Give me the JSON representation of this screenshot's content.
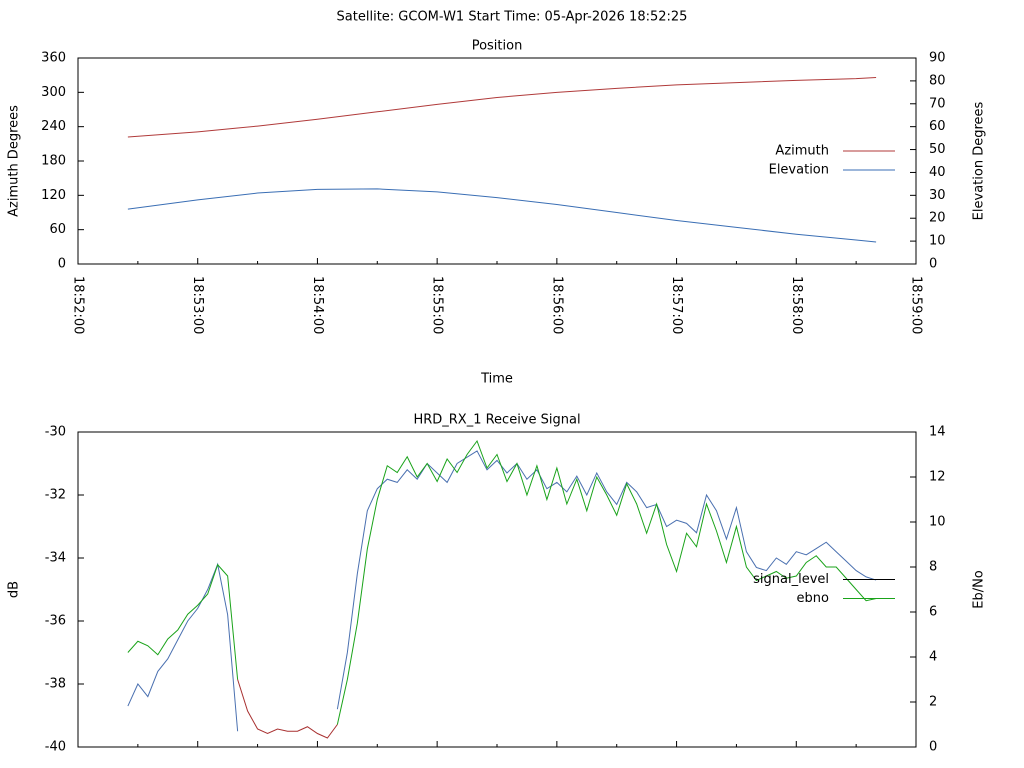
{
  "title": "Satellite: GCOM-W1    Start Time: 05-Apr-2026 18:52:25",
  "chart_data": [
    {
      "type": "line",
      "title": "Position",
      "xlabel": "Time",
      "ylabel": "Azimuth Degrees",
      "y2label": "Elevation Degrees",
      "x": [
        "18:52:25",
        "18:53:00",
        "18:53:30",
        "18:54:00",
        "18:54:30",
        "18:55:00",
        "18:55:30",
        "18:56:00",
        "18:56:30",
        "18:57:00",
        "18:57:30",
        "18:58:00",
        "18:58:30",
        "18:58:40"
      ],
      "series": [
        {
          "name": "Azimuth",
          "color": "#b03a3a",
          "axis": "y",
          "values": [
            222,
            231,
            241,
            253,
            266,
            279,
            291,
            300,
            307,
            313,
            317,
            321,
            324,
            326
          ]
        },
        {
          "name": "Elevation",
          "color": "#3a6eb4",
          "axis": "y2",
          "values": [
            24,
            28,
            31,
            32.6,
            32.8,
            31.5,
            29,
            26,
            22.5,
            19,
            16,
            13,
            10.5,
            9.6
          ]
        }
      ],
      "xlim": [
        "18:52:00",
        "18:59:00"
      ],
      "xticks": [
        "18:52:00",
        "18:53:00",
        "18:54:00",
        "18:55:00",
        "18:56:00",
        "18:57:00",
        "18:58:00",
        "18:59:00"
      ],
      "xtick_labels": true,
      "ylim": [
        0,
        360
      ],
      "yticks": [
        0,
        60,
        120,
        180,
        240,
        300,
        360
      ],
      "y2lim": [
        0,
        90
      ],
      "y2ticks": [
        0,
        10,
        20,
        30,
        40,
        50,
        60,
        70,
        80,
        90
      ],
      "legend": "right"
    },
    {
      "type": "line",
      "title": "HRD_RX_1 Receive Signal",
      "ylabel": "dB",
      "y2label": "Eb/No",
      "x": [
        "18:52:25",
        "18:52:30",
        "18:52:35",
        "18:52:40",
        "18:52:45",
        "18:52:50",
        "18:52:55",
        "18:53:00",
        "18:53:05",
        "18:53:10",
        "18:53:15",
        "18:53:20",
        "18:53:25",
        "18:53:30",
        "18:53:35",
        "18:53:40",
        "18:53:45",
        "18:53:50",
        "18:53:55",
        "18:54:00",
        "18:54:05",
        "18:54:10",
        "18:54:15",
        "18:54:20",
        "18:54:25",
        "18:54:30",
        "18:54:35",
        "18:54:40",
        "18:54:45",
        "18:54:50",
        "18:54:55",
        "18:55:00",
        "18:55:05",
        "18:55:10",
        "18:55:15",
        "18:55:20",
        "18:55:25",
        "18:55:30",
        "18:55:35",
        "18:55:40",
        "18:55:45",
        "18:55:50",
        "18:55:55",
        "18:56:00",
        "18:56:05",
        "18:56:10",
        "18:56:15",
        "18:56:20",
        "18:56:25",
        "18:56:30",
        "18:56:35",
        "18:56:40",
        "18:56:45",
        "18:56:50",
        "18:56:55",
        "18:57:00",
        "18:57:05",
        "18:57:10",
        "18:57:15",
        "18:57:20",
        "18:57:25",
        "18:57:30",
        "18:57:35",
        "18:57:40",
        "18:57:45",
        "18:57:50",
        "18:57:55",
        "18:58:00",
        "18:58:05",
        "18:58:10",
        "18:58:15",
        "18:58:20",
        "18:58:25",
        "18:58:30",
        "18:58:35",
        "18:58:40"
      ],
      "series": [
        {
          "name": "signal_level",
          "color": "#4a70b0",
          "key_color": "#000000",
          "axis": "y",
          "values": [
            -38.7,
            -38.0,
            -38.4,
            -37.6,
            -37.2,
            -36.6,
            -36.0,
            -35.6,
            -35.0,
            -34.2,
            -35.8,
            -39.5,
            null,
            null,
            null,
            null,
            null,
            null,
            null,
            null,
            null,
            -38.8,
            -37.0,
            -34.5,
            -32.5,
            -31.8,
            -31.5,
            -31.6,
            -31.2,
            -31.5,
            -31.0,
            -31.3,
            -31.6,
            -31.0,
            -30.8,
            -30.6,
            -31.2,
            -30.9,
            -31.3,
            -31.0,
            -31.5,
            -31.2,
            -31.8,
            -31.6,
            -31.9,
            -31.4,
            -32.0,
            -31.3,
            -31.9,
            -32.3,
            -31.6,
            -31.9,
            -32.4,
            -32.3,
            -33.0,
            -32.8,
            -32.9,
            -33.2,
            -32.0,
            -32.5,
            -33.4,
            -32.4,
            -33.8,
            -34.3,
            -34.4,
            -34.0,
            -34.2,
            -33.8,
            -33.9,
            -33.7,
            -33.5,
            -33.8,
            -34.1,
            -34.4,
            -34.6,
            -34.7
          ]
        },
        {
          "name": "ebno",
          "color": "#1aa31a",
          "axis": "y2",
          "values": [
            4.2,
            4.7,
            4.5,
            4.1,
            4.8,
            5.2,
            5.9,
            6.3,
            6.8,
            8.1,
            7.6,
            3.0,
            null,
            null,
            null,
            null,
            null,
            null,
            null,
            null,
            null,
            1.0,
            3.0,
            5.5,
            8.8,
            11.0,
            12.5,
            12.2,
            12.9,
            12.0,
            12.6,
            11.8,
            12.8,
            12.2,
            13.0,
            13.6,
            12.4,
            13.0,
            11.8,
            12.6,
            11.2,
            12.5,
            11.0,
            12.4,
            10.8,
            11.9,
            10.5,
            12.0,
            11.2,
            10.3,
            11.7,
            10.8,
            9.5,
            10.8,
            9.0,
            7.8,
            9.5,
            8.9,
            10.8,
            9.6,
            8.2,
            9.8,
            8.0,
            7.4,
            7.6,
            7.8,
            7.5,
            7.6,
            8.2,
            8.5,
            8.0,
            8.0,
            7.5,
            7.0,
            6.5,
            6.6
          ]
        },
        {
          "color": "#a83030",
          "axis": "y2",
          "values": [
            null,
            null,
            null,
            null,
            null,
            null,
            null,
            null,
            null,
            null,
            null,
            3.0,
            1.6,
            0.8,
            0.6,
            0.8,
            0.7,
            0.7,
            0.9,
            0.6,
            0.4,
            1.0,
            null,
            null,
            null,
            null,
            null,
            null,
            null,
            null,
            null,
            null,
            null,
            null,
            null,
            null,
            null,
            null,
            null,
            null,
            null,
            null,
            null,
            null,
            null,
            null,
            null,
            null,
            null,
            null,
            null,
            null,
            null,
            null,
            null,
            null,
            null,
            null,
            null,
            null,
            null,
            null,
            null,
            null,
            null,
            null,
            null,
            null,
            null,
            null,
            null,
            null,
            null,
            null,
            null,
            null
          ]
        }
      ],
      "xlim": [
        "18:52:00",
        "18:59:00"
      ],
      "xticks": [
        "18:52:00",
        "18:53:00",
        "18:54:00",
        "18:55:00",
        "18:56:00",
        "18:57:00",
        "18:58:00",
        "18:59:00"
      ],
      "xtick_labels": false,
      "ylim": [
        -40,
        -30
      ],
      "yticks": [
        -40,
        -38,
        -36,
        -34,
        -32,
        -30
      ],
      "y2lim": [
        0,
        14
      ],
      "y2ticks": [
        0,
        2,
        4,
        6,
        8,
        10,
        12,
        14
      ],
      "legend": "right"
    }
  ]
}
